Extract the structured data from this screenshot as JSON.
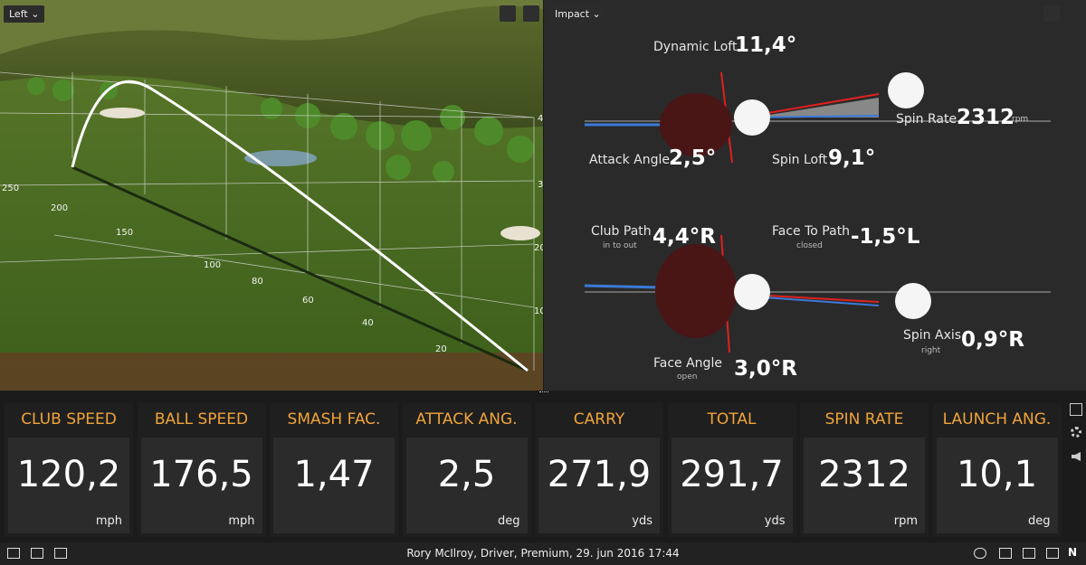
{
  "left_view": {
    "selector": "Left",
    "distance_labels": [
      "250",
      "200",
      "150",
      "100",
      "80",
      "60",
      "40",
      "20"
    ],
    "height_labels": [
      "4",
      "3",
      "20",
      "10"
    ]
  },
  "impact_view": {
    "selector": "Impact",
    "parameters": [
      {
        "label": "Dynamic Loft",
        "value": "11,4°"
      },
      {
        "label": "Spin Rate",
        "value": "2312",
        "unit": "rpm"
      },
      {
        "label": "Attack Angle",
        "value": "2,5°"
      },
      {
        "label": "Spin Loft",
        "value": "9,1°"
      },
      {
        "label": "Club Path",
        "sublabel": "in to out",
        "value": "4,4°R"
      },
      {
        "label": "Face To Path",
        "sublabel": "closed",
        "value": "-1,5°L"
      },
      {
        "label": "Spin Axis",
        "sublabel": "right",
        "value": "0,9°R"
      },
      {
        "label": "Face Angle",
        "sublabel": "open",
        "value": "3,0°R"
      }
    ]
  },
  "tiles": [
    {
      "label": "CLUB SPEED",
      "value": "120,2",
      "unit": "mph"
    },
    {
      "label": "BALL SPEED",
      "value": "176,5",
      "unit": "mph"
    },
    {
      "label": "SMASH FAC.",
      "value": "1,47"
    },
    {
      "label": "ATTACK ANG.",
      "value": "2,5",
      "unit": "deg"
    },
    {
      "label": "CARRY",
      "value": "271,9",
      "unit": "yds"
    },
    {
      "label": "TOTAL",
      "value": "291,7",
      "unit": "yds"
    },
    {
      "label": "SPIN RATE",
      "value": "2312",
      "unit": "rpm"
    },
    {
      "label": "LAUNCH ANG.",
      "value": "10,1",
      "unit": "deg"
    }
  ],
  "status_bar": {
    "session": "Rory McIlroy, Driver, Premium, 29. jun 2016 17:44",
    "user_initial": "N"
  }
}
